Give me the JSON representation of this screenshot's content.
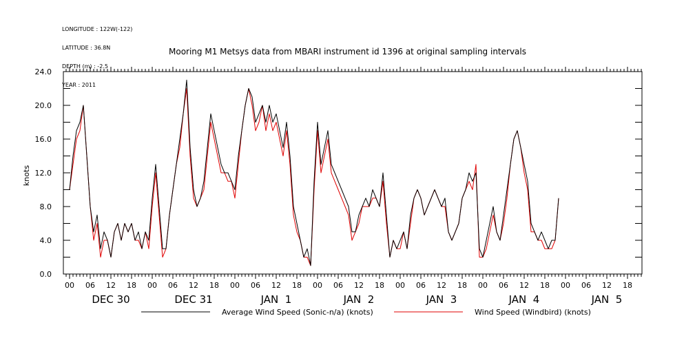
{
  "meta": {
    "longitude": "LONGITUDE : 122W(-122)",
    "latitude": "LATITUDE : 36.8N",
    "depth": "DEPTH (m) : -2.5",
    "year": "YEAR : 2011"
  },
  "colors": {
    "series1": "#000000",
    "series2": "#e00000",
    "axis": "#000000"
  },
  "chart_data": {
    "type": "line",
    "title": "Mooring M1 Metsys data from MBARI instrument id 1396 at original sampling intervals",
    "ylabel": "knots",
    "xlabel": "",
    "ylim": [
      0,
      24
    ],
    "xlim": [
      0,
      168
    ],
    "y_ticks": [
      "0.0",
      "4.0",
      "8.0",
      "12.0",
      "16.0",
      "20.0",
      "24.0"
    ],
    "hour_ticks": [
      "00",
      "06",
      "12",
      "18",
      "00",
      "06",
      "12",
      "18",
      "00",
      "06",
      "12",
      "18",
      "00",
      "06",
      "12",
      "18",
      "00",
      "06",
      "12",
      "18",
      "00",
      "06",
      "12",
      "18",
      "00",
      "06",
      "12",
      "18"
    ],
    "day_labels": [
      "DEC 30",
      "DEC 31",
      "JAN  1",
      "JAN  2",
      "JAN  3",
      "JAN  4",
      "JAN  5"
    ],
    "grid": false,
    "legend_position": "bottom",
    "series": [
      {
        "name": "Average Wind Speed (Sonic-n/a) (knots)",
        "points": [
          [
            0,
            10
          ],
          [
            1,
            14
          ],
          [
            2,
            17
          ],
          [
            3,
            18
          ],
          [
            4,
            20
          ],
          [
            5,
            14
          ],
          [
            6,
            8
          ],
          [
            7,
            5
          ],
          [
            8,
            7
          ],
          [
            9,
            3
          ],
          [
            10,
            5
          ],
          [
            11,
            4
          ],
          [
            12,
            2
          ],
          [
            13,
            5
          ],
          [
            14,
            6
          ],
          [
            15,
            4
          ],
          [
            16,
            6
          ],
          [
            17,
            5
          ],
          [
            18,
            6
          ],
          [
            19,
            4
          ],
          [
            20,
            5
          ],
          [
            21,
            3
          ],
          [
            22,
            5
          ],
          [
            23,
            4
          ],
          [
            24,
            9
          ],
          [
            25,
            13
          ],
          [
            26,
            8
          ],
          [
            27,
            3
          ],
          [
            28,
            3
          ],
          [
            29,
            7
          ],
          [
            30,
            10
          ],
          [
            31,
            13
          ],
          [
            32,
            16
          ],
          [
            33,
            19
          ],
          [
            34,
            23
          ],
          [
            35,
            15
          ],
          [
            36,
            10
          ],
          [
            37,
            8
          ],
          [
            38,
            9
          ],
          [
            39,
            11
          ],
          [
            40,
            15
          ],
          [
            41,
            19
          ],
          [
            42,
            17
          ],
          [
            43,
            15
          ],
          [
            44,
            13
          ],
          [
            45,
            12
          ],
          [
            46,
            12
          ],
          [
            47,
            11
          ],
          [
            48,
            10
          ],
          [
            49,
            14
          ],
          [
            50,
            17
          ],
          [
            51,
            20
          ],
          [
            52,
            22
          ],
          [
            53,
            21
          ],
          [
            54,
            18
          ],
          [
            55,
            19
          ],
          [
            56,
            20
          ],
          [
            57,
            18
          ],
          [
            58,
            20
          ],
          [
            59,
            18
          ],
          [
            60,
            19
          ],
          [
            61,
            17
          ],
          [
            62,
            15
          ],
          [
            63,
            18
          ],
          [
            64,
            14
          ],
          [
            65,
            8
          ],
          [
            66,
            6
          ],
          [
            67,
            4
          ],
          [
            68,
            2
          ],
          [
            69,
            3
          ],
          [
            70,
            1
          ],
          [
            71,
            11
          ],
          [
            72,
            18
          ],
          [
            73,
            13
          ],
          [
            74,
            15
          ],
          [
            75,
            17
          ],
          [
            76,
            13
          ],
          [
            77,
            12
          ],
          [
            78,
            11
          ],
          [
            79,
            10
          ],
          [
            80,
            9
          ],
          [
            81,
            8
          ],
          [
            82,
            5
          ],
          [
            83,
            5
          ],
          [
            84,
            7
          ],
          [
            85,
            8
          ],
          [
            86,
            9
          ],
          [
            87,
            8
          ],
          [
            88,
            10
          ],
          [
            89,
            9
          ],
          [
            90,
            8
          ],
          [
            91,
            12
          ],
          [
            92,
            7
          ],
          [
            93,
            2
          ],
          [
            94,
            4
          ],
          [
            95,
            3
          ],
          [
            96,
            4
          ],
          [
            97,
            5
          ],
          [
            98,
            3
          ],
          [
            99,
            7
          ],
          [
            100,
            9
          ],
          [
            101,
            10
          ],
          [
            102,
            9
          ],
          [
            103,
            7
          ],
          [
            104,
            8
          ],
          [
            105,
            9
          ],
          [
            106,
            10
          ],
          [
            107,
            9
          ],
          [
            108,
            8
          ],
          [
            109,
            9
          ],
          [
            110,
            5
          ],
          [
            111,
            4
          ],
          [
            112,
            5
          ],
          [
            113,
            6
          ],
          [
            114,
            9
          ],
          [
            115,
            10
          ],
          [
            116,
            12
          ],
          [
            117,
            11
          ],
          [
            118,
            12
          ],
          [
            119,
            3
          ],
          [
            120,
            2
          ],
          [
            121,
            4
          ],
          [
            122,
            6
          ],
          [
            123,
            8
          ],
          [
            124,
            5
          ],
          [
            125,
            4
          ],
          [
            126,
            7
          ],
          [
            127,
            10
          ],
          [
            128,
            13
          ],
          [
            129,
            16
          ],
          [
            130,
            17
          ],
          [
            131,
            15
          ],
          [
            132,
            13
          ],
          [
            133,
            11
          ],
          [
            134,
            6
          ],
          [
            135,
            5
          ],
          [
            136,
            4
          ],
          [
            137,
            5
          ],
          [
            138,
            4
          ],
          [
            139,
            3
          ],
          [
            140,
            4
          ],
          [
            141,
            4
          ],
          [
            142,
            9
          ]
        ]
      },
      {
        "name": "Wind Speed (Windbird) (knots)",
        "points": [
          [
            0,
            10
          ],
          [
            1,
            13
          ],
          [
            2,
            16
          ],
          [
            3,
            17
          ],
          [
            4,
            20
          ],
          [
            5,
            14
          ],
          [
            6,
            8
          ],
          [
            7,
            4
          ],
          [
            8,
            6
          ],
          [
            9,
            2
          ],
          [
            10,
            4
          ],
          [
            11,
            4
          ],
          [
            12,
            2
          ],
          [
            13,
            5
          ],
          [
            14,
            6
          ],
          [
            15,
            4
          ],
          [
            16,
            6
          ],
          [
            17,
            5
          ],
          [
            18,
            6
          ],
          [
            19,
            4
          ],
          [
            20,
            4
          ],
          [
            21,
            3
          ],
          [
            22,
            5
          ],
          [
            23,
            3
          ],
          [
            24,
            8
          ],
          [
            25,
            12
          ],
          [
            26,
            7
          ],
          [
            27,
            2
          ],
          [
            28,
            3
          ],
          [
            29,
            7
          ],
          [
            30,
            10
          ],
          [
            31,
            13
          ],
          [
            32,
            15
          ],
          [
            33,
            19
          ],
          [
            34,
            22
          ],
          [
            35,
            14
          ],
          [
            36,
            9
          ],
          [
            37,
            8
          ],
          [
            38,
            9
          ],
          [
            39,
            10
          ],
          [
            40,
            14
          ],
          [
            41,
            18
          ],
          [
            42,
            16
          ],
          [
            43,
            14
          ],
          [
            44,
            12
          ],
          [
            45,
            12
          ],
          [
            46,
            11
          ],
          [
            47,
            11
          ],
          [
            48,
            9
          ],
          [
            49,
            13
          ],
          [
            50,
            17
          ],
          [
            51,
            20
          ],
          [
            52,
            22
          ],
          [
            53,
            20
          ],
          [
            54,
            17
          ],
          [
            55,
            18
          ],
          [
            56,
            20
          ],
          [
            57,
            17
          ],
          [
            58,
            19
          ],
          [
            59,
            17
          ],
          [
            60,
            18
          ],
          [
            61,
            16
          ],
          [
            62,
            14
          ],
          [
            63,
            17
          ],
          [
            64,
            13
          ],
          [
            65,
            7
          ],
          [
            66,
            5
          ],
          [
            67,
            4
          ],
          [
            68,
            2
          ],
          [
            69,
            2
          ],
          [
            70,
            1
          ],
          [
            71,
            10
          ],
          [
            72,
            17
          ],
          [
            73,
            12
          ],
          [
            74,
            14
          ],
          [
            75,
            16
          ],
          [
            76,
            12
          ],
          [
            77,
            11
          ],
          [
            78,
            10
          ],
          [
            79,
            9
          ],
          [
            80,
            8
          ],
          [
            81,
            7
          ],
          [
            82,
            4
          ],
          [
            83,
            5
          ],
          [
            84,
            6
          ],
          [
            85,
            8
          ],
          [
            86,
            8
          ],
          [
            87,
            8
          ],
          [
            88,
            9
          ],
          [
            89,
            9
          ],
          [
            90,
            8
          ],
          [
            91,
            11
          ],
          [
            92,
            6
          ],
          [
            93,
            2
          ],
          [
            94,
            4
          ],
          [
            95,
            3
          ],
          [
            96,
            3
          ],
          [
            97,
            5
          ],
          [
            98,
            3
          ],
          [
            99,
            6
          ],
          [
            100,
            9
          ],
          [
            101,
            10
          ],
          [
            102,
            9
          ],
          [
            103,
            7
          ],
          [
            104,
            8
          ],
          [
            105,
            9
          ],
          [
            106,
            10
          ],
          [
            107,
            9
          ],
          [
            108,
            8
          ],
          [
            109,
            8
          ],
          [
            110,
            5
          ],
          [
            111,
            4
          ],
          [
            112,
            5
          ],
          [
            113,
            6
          ],
          [
            114,
            9
          ],
          [
            115,
            10
          ],
          [
            116,
            11
          ],
          [
            117,
            10
          ],
          [
            118,
            13
          ],
          [
            119,
            2
          ],
          [
            120,
            2
          ],
          [
            121,
            3
          ],
          [
            122,
            5
          ],
          [
            123,
            7
          ],
          [
            124,
            5
          ],
          [
            125,
            4
          ],
          [
            126,
            6
          ],
          [
            127,
            9
          ],
          [
            128,
            13
          ],
          [
            129,
            16
          ],
          [
            130,
            17
          ],
          [
            131,
            15
          ],
          [
            132,
            12
          ],
          [
            133,
            10
          ],
          [
            134,
            5
          ],
          [
            135,
            5
          ],
          [
            136,
            4
          ],
          [
            137,
            4
          ],
          [
            138,
            3
          ],
          [
            139,
            3
          ],
          [
            140,
            3
          ],
          [
            141,
            4
          ],
          [
            142,
            9
          ]
        ]
      }
    ]
  }
}
